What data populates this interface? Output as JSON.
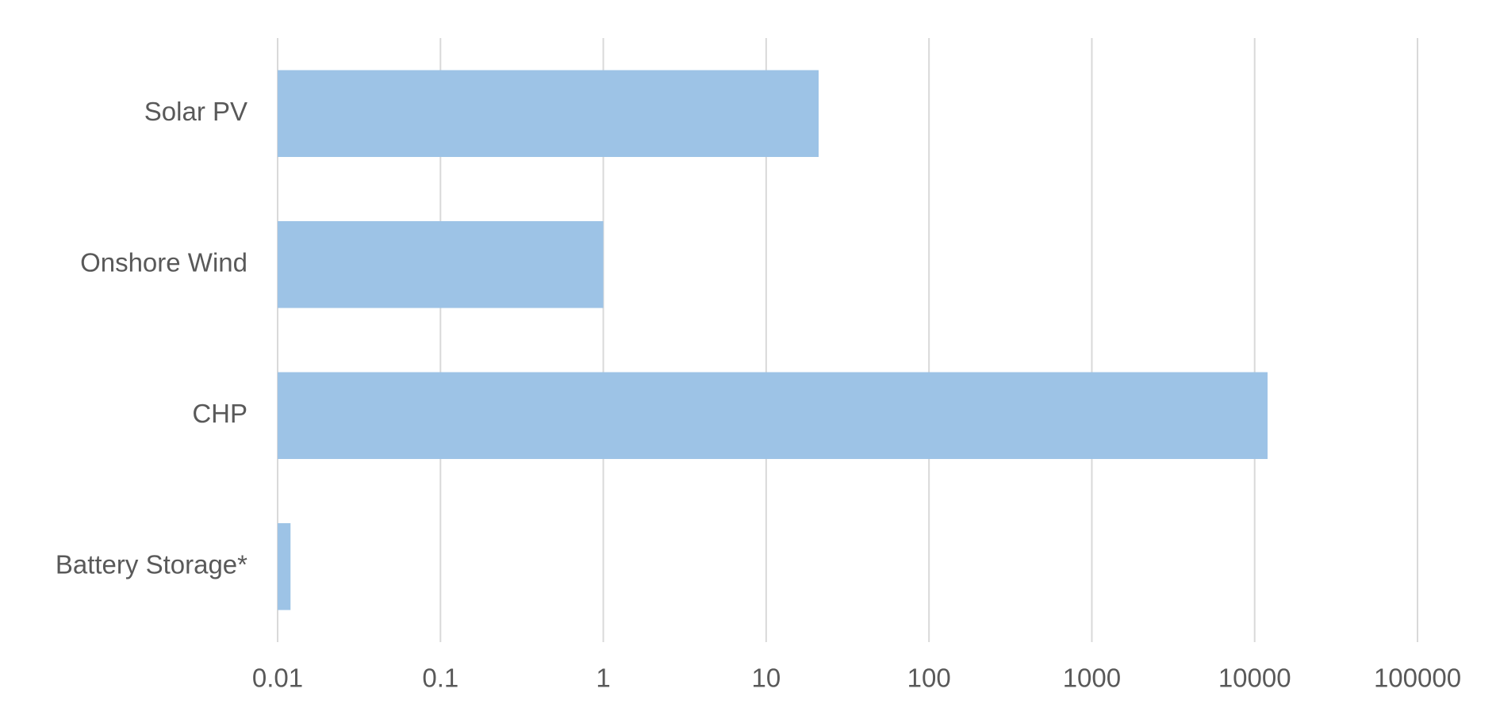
{
  "chart_data": {
    "type": "bar",
    "orientation": "horizontal",
    "categories": [
      "Solar PV",
      "Onshore Wind",
      "CHP",
      "Battery Storage*"
    ],
    "values": [
      21,
      1,
      12000,
      0.012
    ],
    "color": "#9dc3e6",
    "xscale": "log",
    "xlim": [
      0.01,
      100000
    ],
    "xticks": [
      0.01,
      0.1,
      1,
      10,
      100,
      1000,
      10000,
      100000
    ],
    "grid": true
  }
}
